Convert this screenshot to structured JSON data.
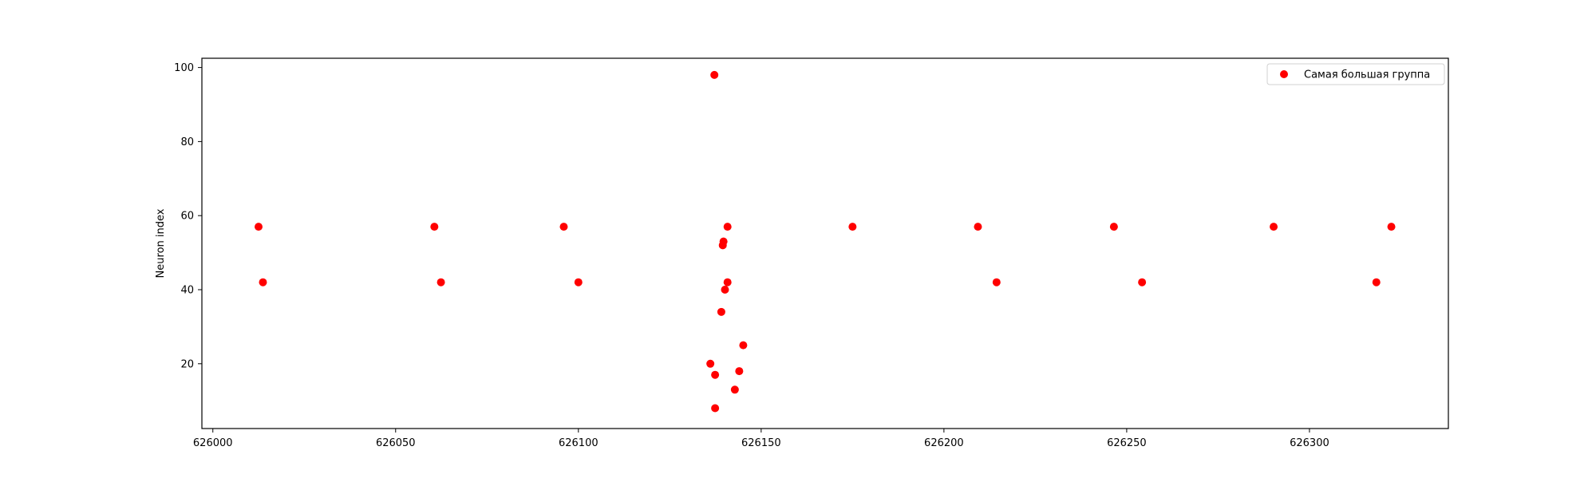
{
  "chart_data": {
    "type": "scatter",
    "title": "",
    "xlabel": "",
    "ylabel": "Neuron index",
    "xlim": [
      625997,
      626338
    ],
    "ylim": [
      2.5,
      102.5
    ],
    "x_ticks": [
      626000,
      626050,
      626100,
      626150,
      626200,
      626250,
      626300
    ],
    "y_ticks": [
      20,
      40,
      60,
      80,
      100
    ],
    "grid": false,
    "legend_position": "top-right",
    "series": [
      {
        "name": "Самая большая группа",
        "color": "#ff0000",
        "points": [
          {
            "x": 626012.5,
            "y": 57
          },
          {
            "x": 626013.7,
            "y": 42
          },
          {
            "x": 626060.6,
            "y": 57
          },
          {
            "x": 626062.4,
            "y": 42
          },
          {
            "x": 626096.0,
            "y": 57
          },
          {
            "x": 626100.0,
            "y": 42
          },
          {
            "x": 626136.1,
            "y": 20
          },
          {
            "x": 626137.2,
            "y": 98
          },
          {
            "x": 626137.4,
            "y": 17
          },
          {
            "x": 626137.4,
            "y": 8
          },
          {
            "x": 626139.1,
            "y": 34
          },
          {
            "x": 626139.5,
            "y": 52
          },
          {
            "x": 626139.7,
            "y": 53
          },
          {
            "x": 626140.1,
            "y": 40
          },
          {
            "x": 626140.8,
            "y": 57
          },
          {
            "x": 626140.8,
            "y": 42
          },
          {
            "x": 626142.8,
            "y": 13
          },
          {
            "x": 626144.0,
            "y": 18
          },
          {
            "x": 626145.1,
            "y": 25
          },
          {
            "x": 626175.0,
            "y": 57
          },
          {
            "x": 626209.3,
            "y": 57
          },
          {
            "x": 626214.4,
            "y": 42
          },
          {
            "x": 626246.5,
            "y": 57
          },
          {
            "x": 626254.2,
            "y": 42
          },
          {
            "x": 626290.2,
            "y": 57
          },
          {
            "x": 626318.3,
            "y": 42
          },
          {
            "x": 626322.4,
            "y": 57
          }
        ]
      }
    ]
  }
}
